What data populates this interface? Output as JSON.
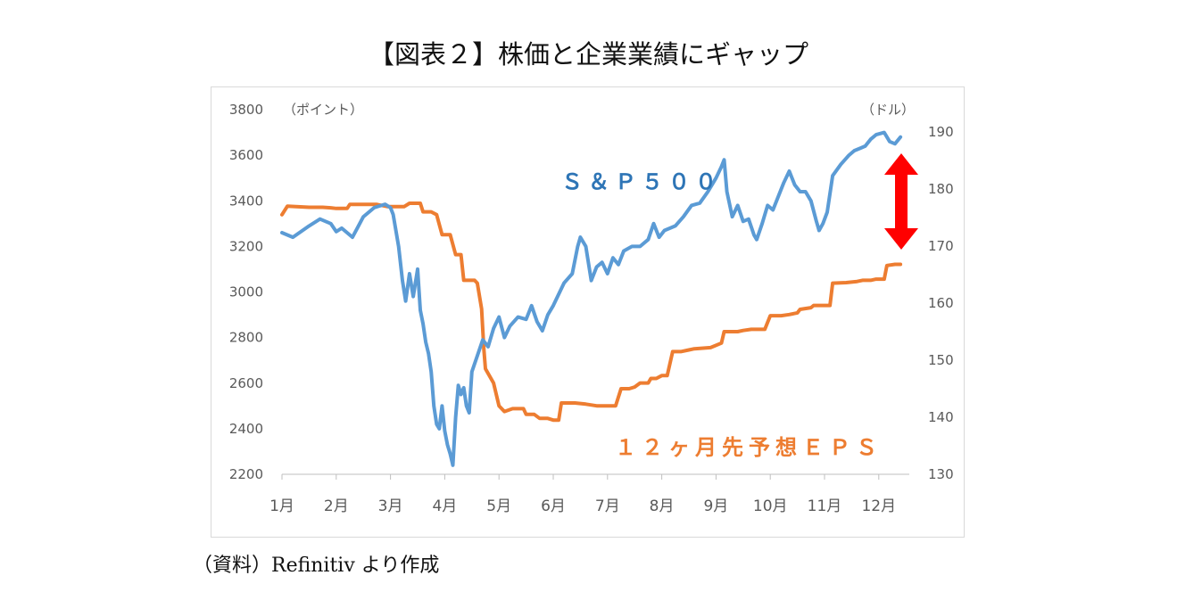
{
  "title": "【図表２】株価と企業業績にギャップ",
  "source": "（資料）Refinitiv より作成",
  "colors": {
    "sp500": "#5b9bd5",
    "eps": "#ed7d31",
    "arrow": "#ff0000",
    "axis_text": "#595959"
  },
  "chart_data": {
    "type": "line",
    "left_axis_unit": "（ポイント）",
    "right_axis_unit": "（ドル）",
    "categories": [
      "1月",
      "2月",
      "3月",
      "4月",
      "5月",
      "6月",
      "7月",
      "8月",
      "9月",
      "10月",
      "11月",
      "12月"
    ],
    "ylim_left": [
      2200,
      3800
    ],
    "yticks_left": [
      "3800",
      "3600",
      "3400",
      "3200",
      "3000",
      "2800",
      "2600",
      "2400",
      "2200"
    ],
    "ylim_right": [
      130,
      190
    ],
    "yticks_right": [
      "190",
      "180",
      "170",
      "160",
      "150",
      "140",
      "130"
    ],
    "series": [
      {
        "name": "Ｓ＆Ｐ５００",
        "axis": "left",
        "points": [
          [
            1.0,
            3260
          ],
          [
            1.2,
            3240
          ],
          [
            1.5,
            3290
          ],
          [
            1.7,
            3320
          ],
          [
            1.9,
            3300
          ],
          [
            2.0,
            3265
          ],
          [
            2.1,
            3280
          ],
          [
            2.3,
            3240
          ],
          [
            2.5,
            3330
          ],
          [
            2.7,
            3370
          ],
          [
            2.9,
            3385
          ],
          [
            3.0,
            3370
          ],
          [
            3.05,
            3340
          ],
          [
            3.15,
            3200
          ],
          [
            3.22,
            3050
          ],
          [
            3.28,
            2960
          ],
          [
            3.35,
            3080
          ],
          [
            3.42,
            2980
          ],
          [
            3.5,
            3100
          ],
          [
            3.55,
            2920
          ],
          [
            3.6,
            2860
          ],
          [
            3.65,
            2780
          ],
          [
            3.7,
            2730
          ],
          [
            3.75,
            2650
          ],
          [
            3.8,
            2500
          ],
          [
            3.85,
            2420
          ],
          [
            3.9,
            2400
          ],
          [
            3.95,
            2500
          ],
          [
            4.0,
            2390
          ],
          [
            4.05,
            2330
          ],
          [
            4.1,
            2290
          ],
          [
            4.15,
            2240
          ],
          [
            4.2,
            2450
          ],
          [
            4.25,
            2590
          ],
          [
            4.3,
            2550
          ],
          [
            4.35,
            2580
          ],
          [
            4.4,
            2500
          ],
          [
            4.45,
            2470
          ],
          [
            4.5,
            2650
          ],
          [
            4.6,
            2720
          ],
          [
            4.7,
            2790
          ],
          [
            4.8,
            2760
          ],
          [
            4.9,
            2840
          ],
          [
            5.0,
            2890
          ],
          [
            5.1,
            2800
          ],
          [
            5.2,
            2850
          ],
          [
            5.35,
            2890
          ],
          [
            5.5,
            2880
          ],
          [
            5.6,
            2940
          ],
          [
            5.7,
            2870
          ],
          [
            5.8,
            2830
          ],
          [
            5.9,
            2900
          ],
          [
            6.0,
            2940
          ],
          [
            6.2,
            3040
          ],
          [
            6.35,
            3080
          ],
          [
            6.45,
            3200
          ],
          [
            6.5,
            3240
          ],
          [
            6.6,
            3200
          ],
          [
            6.7,
            3050
          ],
          [
            6.8,
            3110
          ],
          [
            6.9,
            3130
          ],
          [
            7.0,
            3080
          ],
          [
            7.1,
            3150
          ],
          [
            7.2,
            3120
          ],
          [
            7.3,
            3180
          ],
          [
            7.45,
            3200
          ],
          [
            7.6,
            3200
          ],
          [
            7.75,
            3230
          ],
          [
            7.85,
            3300
          ],
          [
            7.95,
            3240
          ],
          [
            8.05,
            3270
          ],
          [
            8.25,
            3290
          ],
          [
            8.4,
            3330
          ],
          [
            8.55,
            3380
          ],
          [
            8.7,
            3390
          ],
          [
            8.85,
            3440
          ],
          [
            9.0,
            3500
          ],
          [
            9.1,
            3550
          ],
          [
            9.15,
            3580
          ],
          [
            9.2,
            3440
          ],
          [
            9.3,
            3330
          ],
          [
            9.4,
            3380
          ],
          [
            9.5,
            3310
          ],
          [
            9.6,
            3320
          ],
          [
            9.7,
            3250
          ],
          [
            9.75,
            3230
          ],
          [
            9.85,
            3300
          ],
          [
            9.95,
            3380
          ],
          [
            10.05,
            3360
          ],
          [
            10.15,
            3420
          ],
          [
            10.25,
            3480
          ],
          [
            10.35,
            3530
          ],
          [
            10.45,
            3470
          ],
          [
            10.55,
            3440
          ],
          [
            10.65,
            3440
          ],
          [
            10.75,
            3400
          ],
          [
            10.85,
            3310
          ],
          [
            10.9,
            3270
          ],
          [
            10.97,
            3300
          ],
          [
            11.05,
            3350
          ],
          [
            11.15,
            3510
          ],
          [
            11.3,
            3560
          ],
          [
            11.45,
            3600
          ],
          [
            11.55,
            3620
          ],
          [
            11.65,
            3630
          ],
          [
            11.75,
            3640
          ],
          [
            11.85,
            3670
          ],
          [
            11.95,
            3690
          ],
          [
            12.1,
            3700
          ],
          [
            12.2,
            3660
          ],
          [
            12.3,
            3650
          ],
          [
            12.4,
            3680
          ]
        ]
      },
      {
        "name": "１２ヶ月先予想ＥＰＳ",
        "axis": "right",
        "points": [
          [
            1.0,
            175.5
          ],
          [
            1.1,
            177
          ],
          [
            1.5,
            176.8
          ],
          [
            1.75,
            176.8
          ],
          [
            1.9,
            176.7
          ],
          [
            2.0,
            176.6
          ],
          [
            2.2,
            176.6
          ],
          [
            2.25,
            177.3
          ],
          [
            2.5,
            177.3
          ],
          [
            2.75,
            177.3
          ],
          [
            2.95,
            176.9
          ],
          [
            3.1,
            176.9
          ],
          [
            3.25,
            176.9
          ],
          [
            3.35,
            177.5
          ],
          [
            3.55,
            177.5
          ],
          [
            3.6,
            176
          ],
          [
            3.75,
            176
          ],
          [
            3.85,
            175.5
          ],
          [
            3.95,
            172
          ],
          [
            4.1,
            172
          ],
          [
            4.2,
            168.5
          ],
          [
            4.3,
            168.5
          ],
          [
            4.35,
            164
          ],
          [
            4.55,
            164
          ],
          [
            4.6,
            163.5
          ],
          [
            4.68,
            159
          ],
          [
            4.72,
            152
          ],
          [
            4.75,
            148.5
          ],
          [
            4.9,
            146
          ],
          [
            5.0,
            142
          ],
          [
            5.1,
            141
          ],
          [
            5.25,
            141.5
          ],
          [
            5.45,
            141.5
          ],
          [
            5.5,
            140.5
          ],
          [
            5.65,
            140.5
          ],
          [
            5.75,
            139.8
          ],
          [
            5.9,
            139.8
          ],
          [
            6.0,
            139.5
          ],
          [
            6.1,
            139.5
          ],
          [
            6.15,
            142.5
          ],
          [
            6.4,
            142.5
          ],
          [
            6.6,
            142.3
          ],
          [
            6.8,
            142
          ],
          [
            7.05,
            142
          ],
          [
            7.15,
            142
          ],
          [
            7.25,
            145
          ],
          [
            7.4,
            145
          ],
          [
            7.5,
            145.3
          ],
          [
            7.6,
            146
          ],
          [
            7.75,
            146
          ],
          [
            7.8,
            146.8
          ],
          [
            7.9,
            146.8
          ],
          [
            8.0,
            147.3
          ],
          [
            8.1,
            147.3
          ],
          [
            8.2,
            151.5
          ],
          [
            8.35,
            151.5
          ],
          [
            8.5,
            151.8
          ],
          [
            8.6,
            152
          ],
          [
            8.9,
            152.2
          ],
          [
            9.1,
            153
          ],
          [
            9.15,
            155
          ],
          [
            9.4,
            155
          ],
          [
            9.5,
            155.2
          ],
          [
            9.65,
            155.4
          ],
          [
            9.9,
            155.4
          ],
          [
            10.0,
            157.8
          ],
          [
            10.2,
            157.8
          ],
          [
            10.35,
            158
          ],
          [
            10.5,
            158.3
          ],
          [
            10.55,
            158.9
          ],
          [
            10.75,
            159.2
          ],
          [
            10.8,
            159.6
          ],
          [
            11.1,
            159.6
          ],
          [
            11.15,
            163.5
          ],
          [
            11.4,
            163.6
          ],
          [
            11.6,
            163.8
          ],
          [
            11.7,
            164
          ],
          [
            11.85,
            164
          ],
          [
            11.95,
            164.2
          ],
          [
            12.1,
            164.2
          ],
          [
            12.15,
            166.6
          ],
          [
            12.3,
            166.8
          ],
          [
            12.4,
            166.8
          ]
        ]
      }
    ],
    "annotation": "double-headed red arrow showing the gap between the two series near December"
  }
}
